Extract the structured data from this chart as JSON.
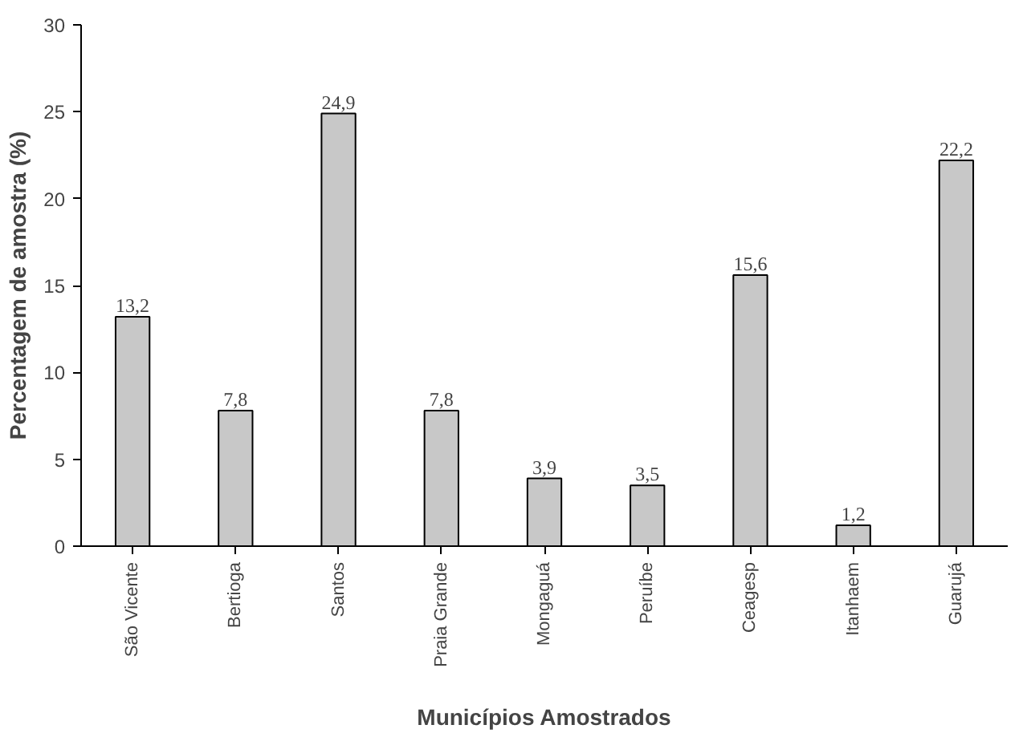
{
  "chart_data": {
    "type": "bar",
    "xlabel": "Municípios Amostrados",
    "ylabel": "Percentagem de amostra (%)",
    "categories": [
      "São Vicente",
      "Bertioga",
      "Santos",
      "Praia Grande",
      "Mongaguá",
      "Peruíbe",
      "Ceagesp",
      "Itanhaem",
      "Guarujá"
    ],
    "values": [
      13.2,
      7.8,
      24.9,
      7.8,
      3.9,
      3.5,
      15.6,
      1.2,
      22.2
    ],
    "value_labels": [
      "13,2",
      "7,8",
      "24,9",
      "7,8",
      "3,9",
      "3,5",
      "15,6",
      "1,2",
      "22,2"
    ],
    "color": "#c8c8c8",
    "ylim": [
      0,
      30
    ],
    "yticks": [
      0,
      5,
      10,
      15,
      20,
      25,
      30
    ],
    "grid": false
  }
}
